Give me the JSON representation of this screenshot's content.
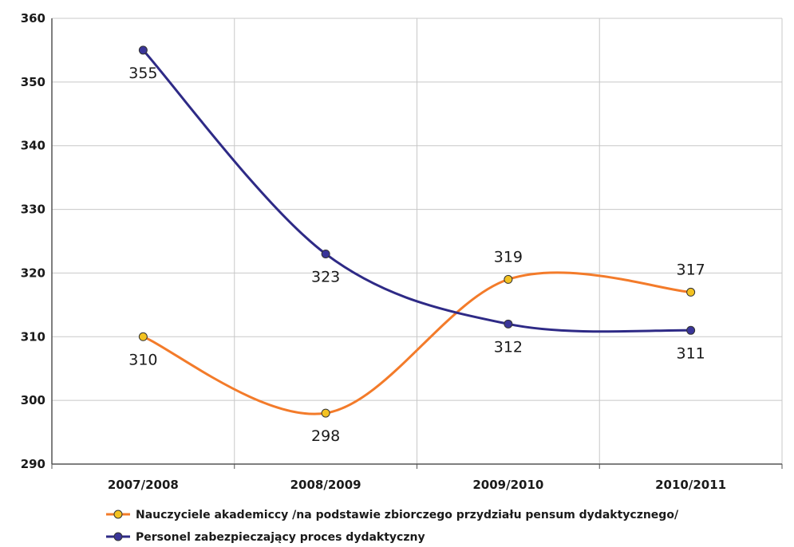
{
  "chart_data": {
    "type": "line",
    "categories": [
      "2007/2008",
      "2008/2009",
      "2009/2010",
      "2010/2011"
    ],
    "ylim": [
      290,
      360
    ],
    "yticks": [
      290,
      300,
      310,
      320,
      330,
      340,
      350,
      360
    ],
    "grid": true,
    "legend_position": "bottom-left",
    "smooth": true,
    "series": [
      {
        "name": "Nauczyciele akademiccy /na podstawie zbiorczego przydziału pensum dydaktycznego/",
        "values": [
          310,
          298,
          319,
          317
        ],
        "color": "#f37b2a",
        "marker_color": "#f3c221",
        "label_position": "below-below-above-above"
      },
      {
        "name": "Personel zabezpieczający proces dydaktyczny",
        "values": [
          355,
          323,
          312,
          311
        ],
        "color": "#2e2a86",
        "marker_color": "#3a3599",
        "label_position": "below-below-below-below"
      }
    ]
  }
}
